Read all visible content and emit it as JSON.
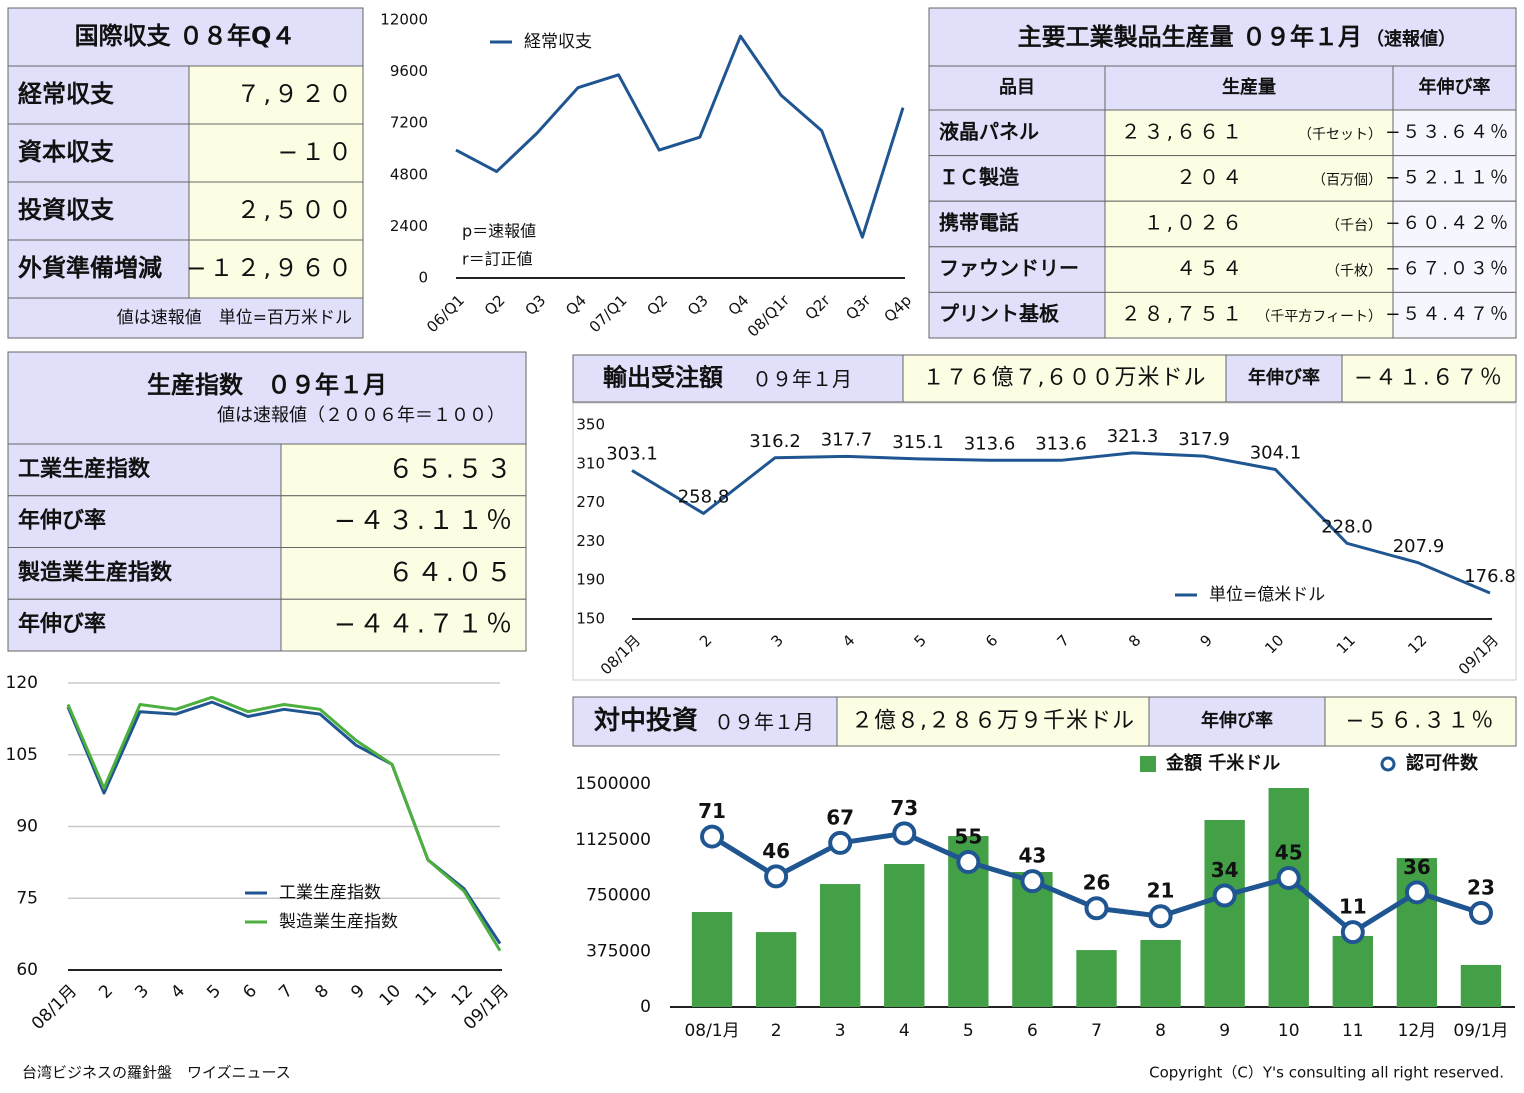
{
  "balance_table": {
    "title": "国際収支 ０８年Q４",
    "rows": [
      [
        "経常収支",
        "７,９２０"
      ],
      [
        "資本収支",
        "−１０"
      ],
      [
        "投資収支",
        "２,５００"
      ],
      [
        "外貨準備増減",
        "−１２,９６０"
      ]
    ],
    "note": "値は速報値　単位=百万米ドル"
  },
  "production_table": {
    "title": "主要工業製品生産量 ０９年１月",
    "title_note": "（速報値）",
    "header": [
      "品目",
      "生産量",
      "年伸び率"
    ],
    "rows": [
      [
        "液晶パネル",
        "２３,６６１",
        "（千セット）",
        "−５３.６４％"
      ],
      [
        "ＩＣ製造",
        "２０４",
        "（百万個）",
        "−５２.１１％"
      ],
      [
        "携帯電話",
        "１,０２６",
        "（千台）",
        "−６０.４２％"
      ],
      [
        "ファウンドリー",
        "４５４",
        "（千枚）",
        "−６７.０３％"
      ],
      [
        "プリント基板",
        "２８,７５１",
        "（千平方フィート）",
        "−５４.４７％"
      ]
    ]
  },
  "index_table": {
    "title": "生産指数　０９年１月",
    "subtitle": "値は速報値（２００６年＝１００）",
    "rows": [
      [
        "工業生産指数",
        "６５.５３"
      ],
      [
        "年伸び率",
        "−４３.１１％"
      ],
      [
        "製造業生産指数",
        "６４.０５"
      ],
      [
        "年伸び率",
        "−４４.７１％"
      ]
    ]
  },
  "export_header": {
    "title": "輸出受注額",
    "period": "０９年１月",
    "amount": "１７６億７,６００万米ドル",
    "rate_label": "年伸び率",
    "rate": "−４１.６７％"
  },
  "investment_header": {
    "title": "対中投資",
    "period": "０９年１月",
    "amount": "２億８,２８６万９千米ドル",
    "rate_label": "年伸び率",
    "rate": "−５６.３１％"
  },
  "chart_data": [
    {
      "type": "line",
      "categories": [
        "06/Q1",
        "Q2",
        "Q3",
        "Q4",
        "07/Q1",
        "Q2",
        "Q3",
        "Q4",
        "08/Q1r",
        "Q2r",
        "Q3r",
        "Q4p"
      ],
      "series": [
        {
          "name": "経常収支",
          "color": "#1f5591",
          "values": [
            5950,
            4950,
            6750,
            8850,
            9450,
            5950,
            6550,
            11250,
            8500,
            6850,
            1900,
            7920
          ]
        }
      ],
      "ylim": [
        0,
        12000
      ],
      "yticks": [
        0,
        2400,
        4800,
        7200,
        9600,
        12000
      ],
      "grid": false,
      "annotations": [
        "p＝速報値",
        "r＝訂正値"
      ]
    },
    {
      "type": "line",
      "categories": [
        "08/1月",
        "2",
        "3",
        "4",
        "5",
        "6",
        "7",
        "8",
        "9",
        "10",
        "11",
        "12",
        "09/1月"
      ],
      "series": [
        {
          "name": "工業生産指数",
          "color": "#1f5591",
          "values": [
            115,
            97,
            114,
            113.5,
            116,
            113,
            114.5,
            113.5,
            107,
            103,
            83,
            77,
            65.53
          ]
        },
        {
          "name": "製造業生産指数",
          "color": "#4caf3e",
          "values": [
            115.5,
            98,
            115.5,
            114.5,
            117,
            114,
            115.5,
            114.5,
            108,
            103,
            83,
            76.5,
            64.05
          ]
        }
      ],
      "ylim": [
        60,
        120
      ],
      "yticks": [
        60,
        75,
        90,
        105,
        120
      ],
      "grid": true
    },
    {
      "type": "line",
      "categories": [
        "08/1月",
        "2",
        "3",
        "4",
        "5",
        "6",
        "7",
        "8",
        "9",
        "10",
        "11",
        "12",
        "09/1月"
      ],
      "series": [
        {
          "name": "単位=億米ドル",
          "color": "#1f5591",
          "values": [
            303.1,
            258.8,
            316.2,
            317.7,
            315.1,
            313.6,
            313.6,
            321.3,
            317.9,
            304.1,
            228.0,
            207.9,
            176.8
          ],
          "value_labels": [
            "303.1",
            "258.8",
            "316.2",
            "317.7",
            "315.1",
            "313.6",
            "313.6",
            "321.3",
            "317.9",
            "304.1",
            "228.0",
            "207.9",
            "176.8"
          ]
        }
      ],
      "ylim": [
        150,
        350
      ],
      "yticks": [
        150,
        190,
        230,
        270,
        310,
        350
      ],
      "grid": false
    },
    {
      "type": "bar",
      "categories": [
        "08/1月",
        "2",
        "3",
        "4",
        "5",
        "6",
        "7",
        "8",
        "9",
        "10",
        "11",
        "12月",
        "09/1月"
      ],
      "series": [
        {
          "name": "金額 千米ドル",
          "color": "#43a047",
          "values": [
            639000,
            504000,
            827000,
            962000,
            1150000,
            908000,
            383000,
            451000,
            1258000,
            1473000,
            478000,
            1002000,
            282869
          ]
        },
        {
          "name": "認可件数",
          "color": "#1f5591",
          "axis": "y2",
          "values": [
            71,
            46,
            67,
            73,
            55,
            43,
            26,
            21,
            34,
            45,
            11,
            36,
            23
          ]
        }
      ],
      "ylim": [
        0,
        1500000
      ],
      "yticks": [
        0,
        375000,
        750000,
        1125000,
        1500000
      ],
      "y2lim": [
        -36,
        104
      ],
      "grid": false
    }
  ],
  "footer": {
    "left": "台湾ビジネスの羅針盤　ワイズニュース",
    "right": "Copyright（C）Y's consulting all right reserved."
  }
}
